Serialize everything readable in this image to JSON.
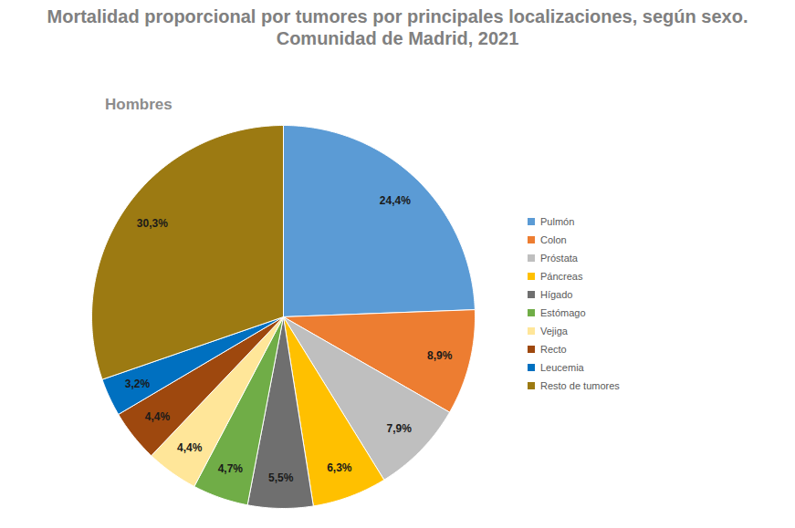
{
  "chart_data": {
    "type": "pie",
    "title": "Mortalidad proporcional por tumores por principales localizaciones, según sexo.\nComunidad de Madrid, 2021",
    "subtitle": "Hombres",
    "categories": [
      "Pulmón",
      "Colon",
      "Próstata",
      "Páncreas",
      "Hígado",
      "Estómago",
      "Vejiga",
      "Recto",
      "Leucemia",
      "Resto de tumores"
    ],
    "values": [
      24.4,
      8.9,
      7.9,
      6.3,
      5.5,
      4.7,
      4.4,
      4.4,
      3.2,
      30.3
    ],
    "value_labels": [
      "24,4%",
      "8,9%",
      "7,9%",
      "6,3%",
      "5,5%",
      "4,7%",
      "4,4%",
      "4,4%",
      "3,2%",
      "30,3%"
    ],
    "colors": [
      "#5b9bd5",
      "#ed7d31",
      "#bfbfbf",
      "#ffc000",
      "#6f6f6f",
      "#70ad47",
      "#ffe699",
      "#9e480e",
      "#0070c0",
      "#9c7a12"
    ],
    "data_labels": true,
    "legend": "right"
  }
}
